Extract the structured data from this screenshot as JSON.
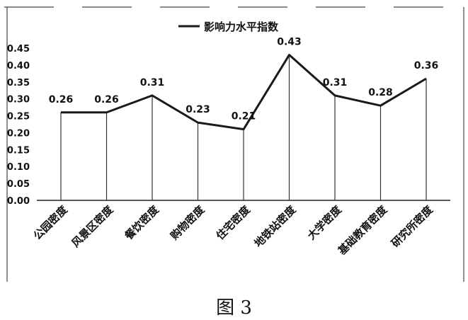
{
  "chart_data": {
    "type": "line",
    "categories": [
      "公园密度",
      "风景区密度",
      "餐饮密度",
      "购物密度",
      "住宅密度",
      "地铁站密度",
      "大学密度",
      "基础教育密度",
      "研究所密度"
    ],
    "series": [
      {
        "name": "影响力水平指数",
        "values": [
          0.26,
          0.26,
          0.31,
          0.23,
          0.21,
          0.43,
          0.31,
          0.28,
          0.36
        ]
      }
    ],
    "data_labels": [
      "0.26",
      "0.26",
      "0.31",
      "0.23",
      "0.21",
      "0.43",
      "0.31",
      "0.28",
      "0.36"
    ],
    "y_ticks": [
      "0.00",
      "0.05",
      "0.10",
      "0.15",
      "0.20",
      "0.25",
      "0.30",
      "0.35",
      "0.40",
      "0.45"
    ],
    "ylim": [
      0,
      0.45
    ],
    "legend_position": "top-center",
    "grid": false,
    "drop_lines": true,
    "line_color": "#1a1a1a"
  },
  "caption": "图 3"
}
